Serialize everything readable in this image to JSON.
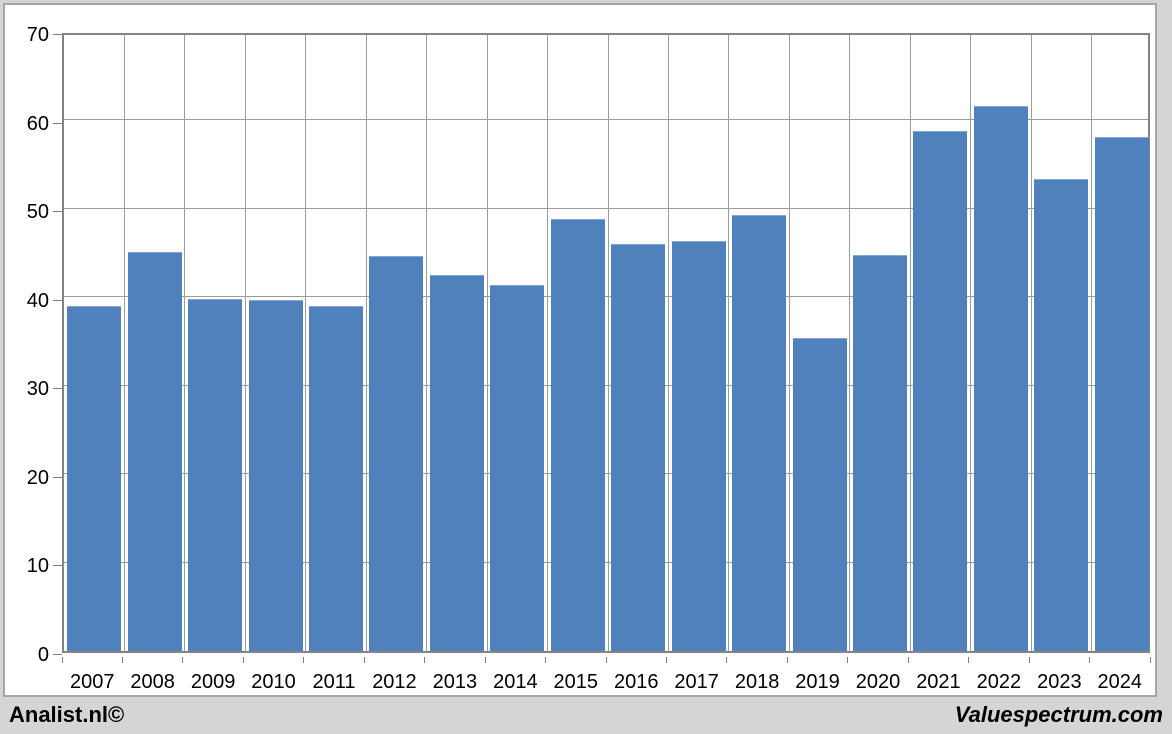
{
  "window": {
    "background": "#D5D5D5",
    "panel_background": "#FFFFFF",
    "panel_border": "#A6A6A6"
  },
  "chart_data": {
    "type": "bar",
    "title": "",
    "xlabel": "",
    "ylabel": "",
    "categories": [
      "2007",
      "2008",
      "2009",
      "2010",
      "2011",
      "2012",
      "2013",
      "2014",
      "2015",
      "2016",
      "2017",
      "2018",
      "2019",
      "2020",
      "2021",
      "2022",
      "2023",
      "2024"
    ],
    "values": [
      39.0,
      45.0,
      39.7,
      39.6,
      39.0,
      44.6,
      42.5,
      41.3,
      48.8,
      46.0,
      46.3,
      49.2,
      35.3,
      44.7,
      58.7,
      61.5,
      53.3,
      58.0
    ],
    "ylim": [
      0,
      70
    ],
    "yticks": [
      0,
      10,
      20,
      30,
      40,
      50,
      60,
      70
    ],
    "grid": true,
    "legend": false,
    "bar_color": "#4F81BD",
    "bar_top_highlight": "#84A8D3",
    "gridline_color": "#9C9C9C",
    "plot_border_color": "#848484",
    "tick_color": "#7F7F7F",
    "label_color": "#000000"
  },
  "footer": {
    "left_text": "Analist.nl©",
    "right_text": "Valuespectrum.com"
  }
}
